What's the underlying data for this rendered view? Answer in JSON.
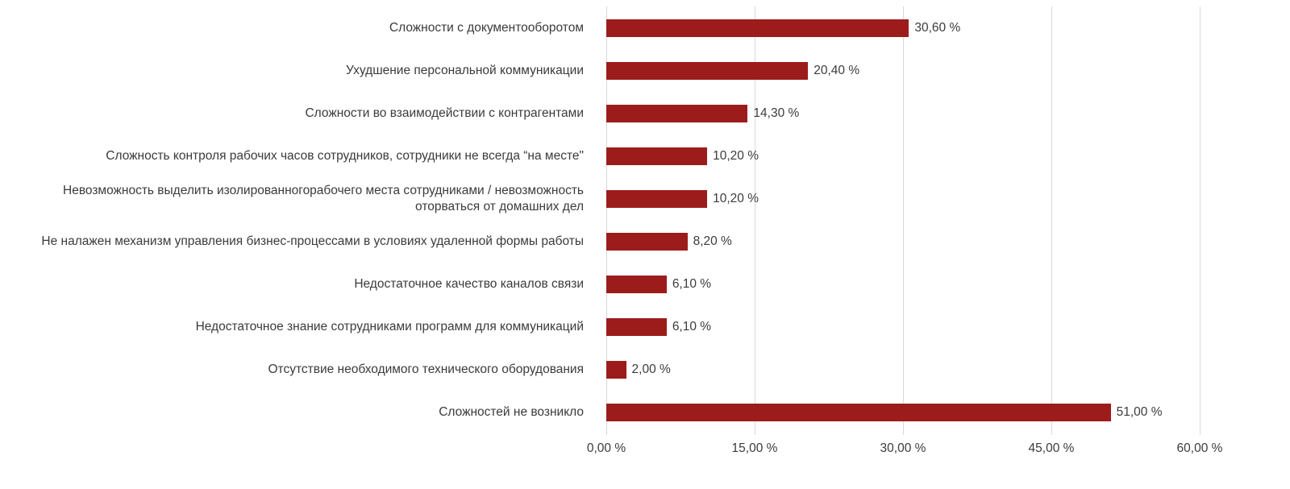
{
  "chart_data": {
    "type": "bar",
    "orientation": "horizontal",
    "title": "",
    "xlabel": "",
    "ylabel": "",
    "xlim": [
      0,
      60
    ],
    "grid": true,
    "legend": false,
    "bar_color": "#9c1c1c",
    "grid_color": "#d9d9d9",
    "text_color": "#3b3b3b",
    "categories": [
      "Сложности с документооборотом",
      "Ухудшение персональной коммуникации",
      "Сложности во взаимодействии с контрагентами",
      "Сложность контроля рабочих часов сотрудников, сотрудники не всегда “на месте\"",
      "Невозможность выделить изолированногорабочего места сотрудниками / невозможность оторваться от домашних дел",
      "Не налажен механизм управления бизнес-процессами в условиях удаленной формы работы",
      "Недостаточное качество каналов связи",
      "Недостаточное знание сотрудниками программ для коммуникаций",
      "Отсутствие необходимого технического оборудования",
      "Сложностей не возникло"
    ],
    "values": [
      30.6,
      20.4,
      14.3,
      10.2,
      10.2,
      8.2,
      6.1,
      6.1,
      2.0,
      51.0
    ],
    "value_labels": [
      "30,60 %",
      "20,40 %",
      "14,30 %",
      "10,20 %",
      "10,20 %",
      "8,20 %",
      "6,10 %",
      "6,10 %",
      "2,00 %",
      "51,00 %"
    ],
    "x_tick_values": [
      0,
      15,
      30,
      45,
      60
    ],
    "x_tick_labels": [
      "0,00 %",
      "15,00 %",
      "30,00 %",
      "45,00 %",
      "60,00 %"
    ]
  }
}
